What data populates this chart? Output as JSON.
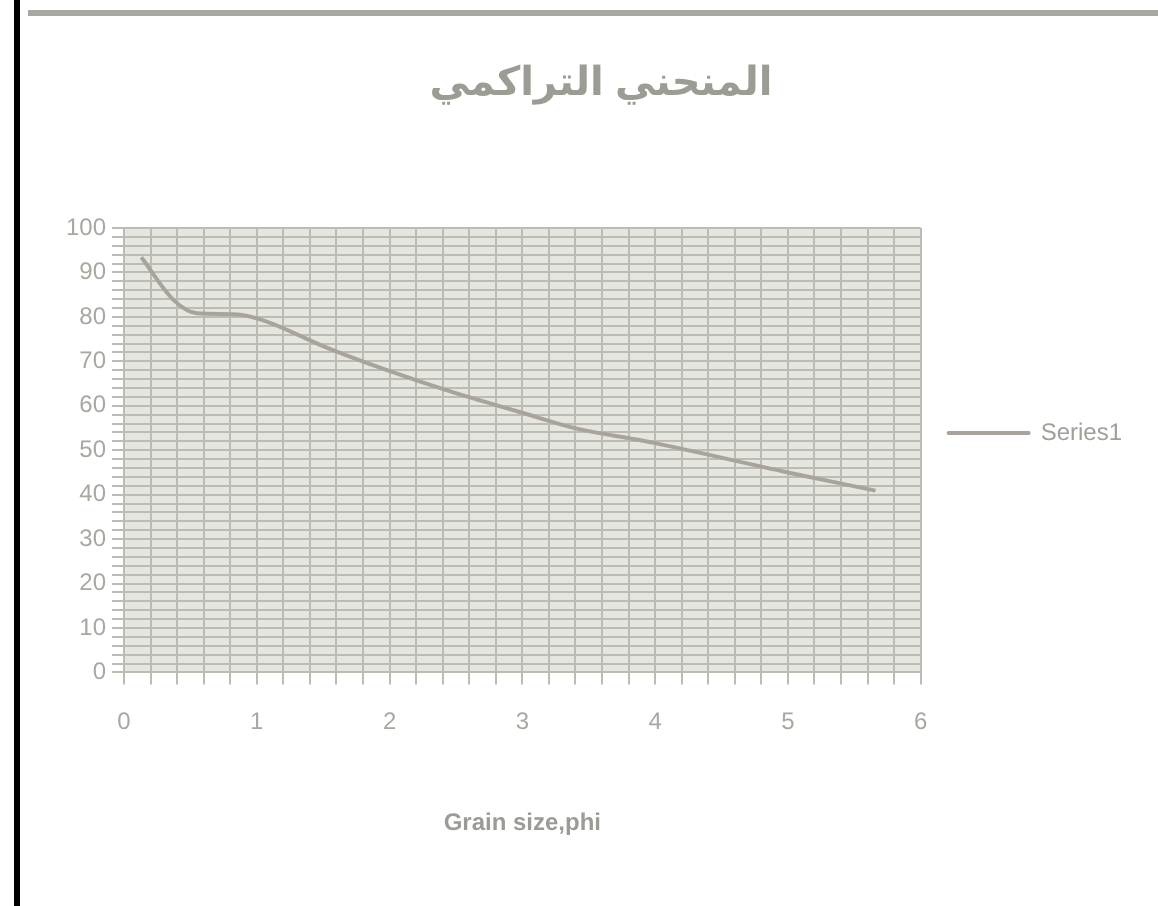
{
  "chart_data": {
    "type": "line",
    "title": "المنحني التراكمي",
    "xlabel": "Grain size,phi",
    "x": [
      0.13,
      0.38,
      0.55,
      0.82,
      1.02,
      1.54,
      1.98,
      2.48,
      2.98,
      3.42,
      3.86,
      4.0,
      5.0,
      5.66
    ],
    "series": [
      {
        "name": "Series1",
        "color": "#a8a49c",
        "values": [
          93.4,
          83.6,
          80.8,
          80.6,
          79.5,
          72.9,
          68,
          63,
          58.6,
          54.8,
          52.4,
          51.6,
          45,
          40.9
        ]
      }
    ],
    "xlim": [
      0,
      6
    ],
    "xticks": [
      0,
      {
        "value": 0.2,
        "label": null
      },
      {
        "value": 0.4,
        "label": null
      },
      {
        "value": 0.6,
        "label": null
      },
      {
        "value": 0.8,
        "label": null
      },
      1,
      {
        "value": 1.2,
        "label": null
      },
      {
        "value": 1.4,
        "label": null
      },
      {
        "value": 1.6,
        "label": null
      },
      {
        "value": 1.8,
        "label": null
      },
      2,
      {
        "value": 2.2,
        "label": null
      },
      {
        "value": 2.4,
        "label": null
      },
      {
        "value": 2.6,
        "label": null
      },
      {
        "value": 2.8,
        "label": null
      },
      3,
      {
        "value": 3.2,
        "label": null
      },
      {
        "value": 3.4,
        "label": null
      },
      {
        "value": 3.6,
        "label": null
      },
      {
        "value": 3.8,
        "label": null
      },
      4,
      {
        "value": 4.2,
        "label": null
      },
      {
        "value": 4.4,
        "label": null
      },
      {
        "value": 4.6,
        "label": null
      },
      {
        "value": 4.8,
        "label": null
      },
      5,
      {
        "value": 5.2,
        "label": null
      },
      {
        "value": 5.4,
        "label": null
      },
      {
        "value": 5.6,
        "label": null
      },
      {
        "value": 5.8,
        "label": null
      },
      6
    ],
    "ylim": [
      0,
      100
    ],
    "yticks": [
      0,
      {
        "value": 2,
        "label": null
      },
      {
        "value": 4,
        "label": null
      },
      {
        "value": 6,
        "label": null
      },
      {
        "value": 8,
        "label": null
      },
      10,
      {
        "value": 12,
        "label": null
      },
      {
        "value": 14,
        "label": null
      },
      {
        "value": 16,
        "label": null
      },
      {
        "value": 18,
        "label": null
      },
      20,
      {
        "value": 22,
        "label": null
      },
      {
        "value": 24,
        "label": null
      },
      {
        "value": 26,
        "label": null
      },
      {
        "value": 28,
        "label": null
      },
      30,
      {
        "value": 32,
        "label": null
      },
      {
        "value": 34,
        "label": null
      },
      {
        "value": 36,
        "label": null
      },
      {
        "value": 38,
        "label": null
      },
      40,
      {
        "value": 42,
        "label": null
      },
      {
        "value": 44,
        "label": null
      },
      {
        "value": 46,
        "label": null
      },
      {
        "value": 48,
        "label": null
      },
      50,
      {
        "value": 52,
        "label": null
      },
      {
        "value": 54,
        "label": null
      },
      {
        "value": 56,
        "label": null
      },
      {
        "value": 58,
        "label": null
      },
      60,
      {
        "value": 62,
        "label": null
      },
      {
        "value": 64,
        "label": null
      },
      {
        "value": 66,
        "label": null
      },
      {
        "value": 68,
        "label": null
      },
      70,
      {
        "value": 72,
        "label": null
      },
      {
        "value": 74,
        "label": null
      },
      {
        "value": 76,
        "label": null
      },
      {
        "value": 78,
        "label": null
      },
      80,
      {
        "value": 82,
        "label": null
      },
      {
        "value": 84,
        "label": null
      },
      {
        "value": 86,
        "label": null
      },
      {
        "value": 88,
        "label": null
      },
      90,
      {
        "value": 92,
        "label": null
      },
      {
        "value": 94,
        "label": null
      },
      {
        "value": 96,
        "label": null
      },
      {
        "value": 98,
        "label": null
      },
      100
    ],
    "grid": true,
    "legend": "right",
    "marker": "none",
    "line_style": "solid"
  }
}
